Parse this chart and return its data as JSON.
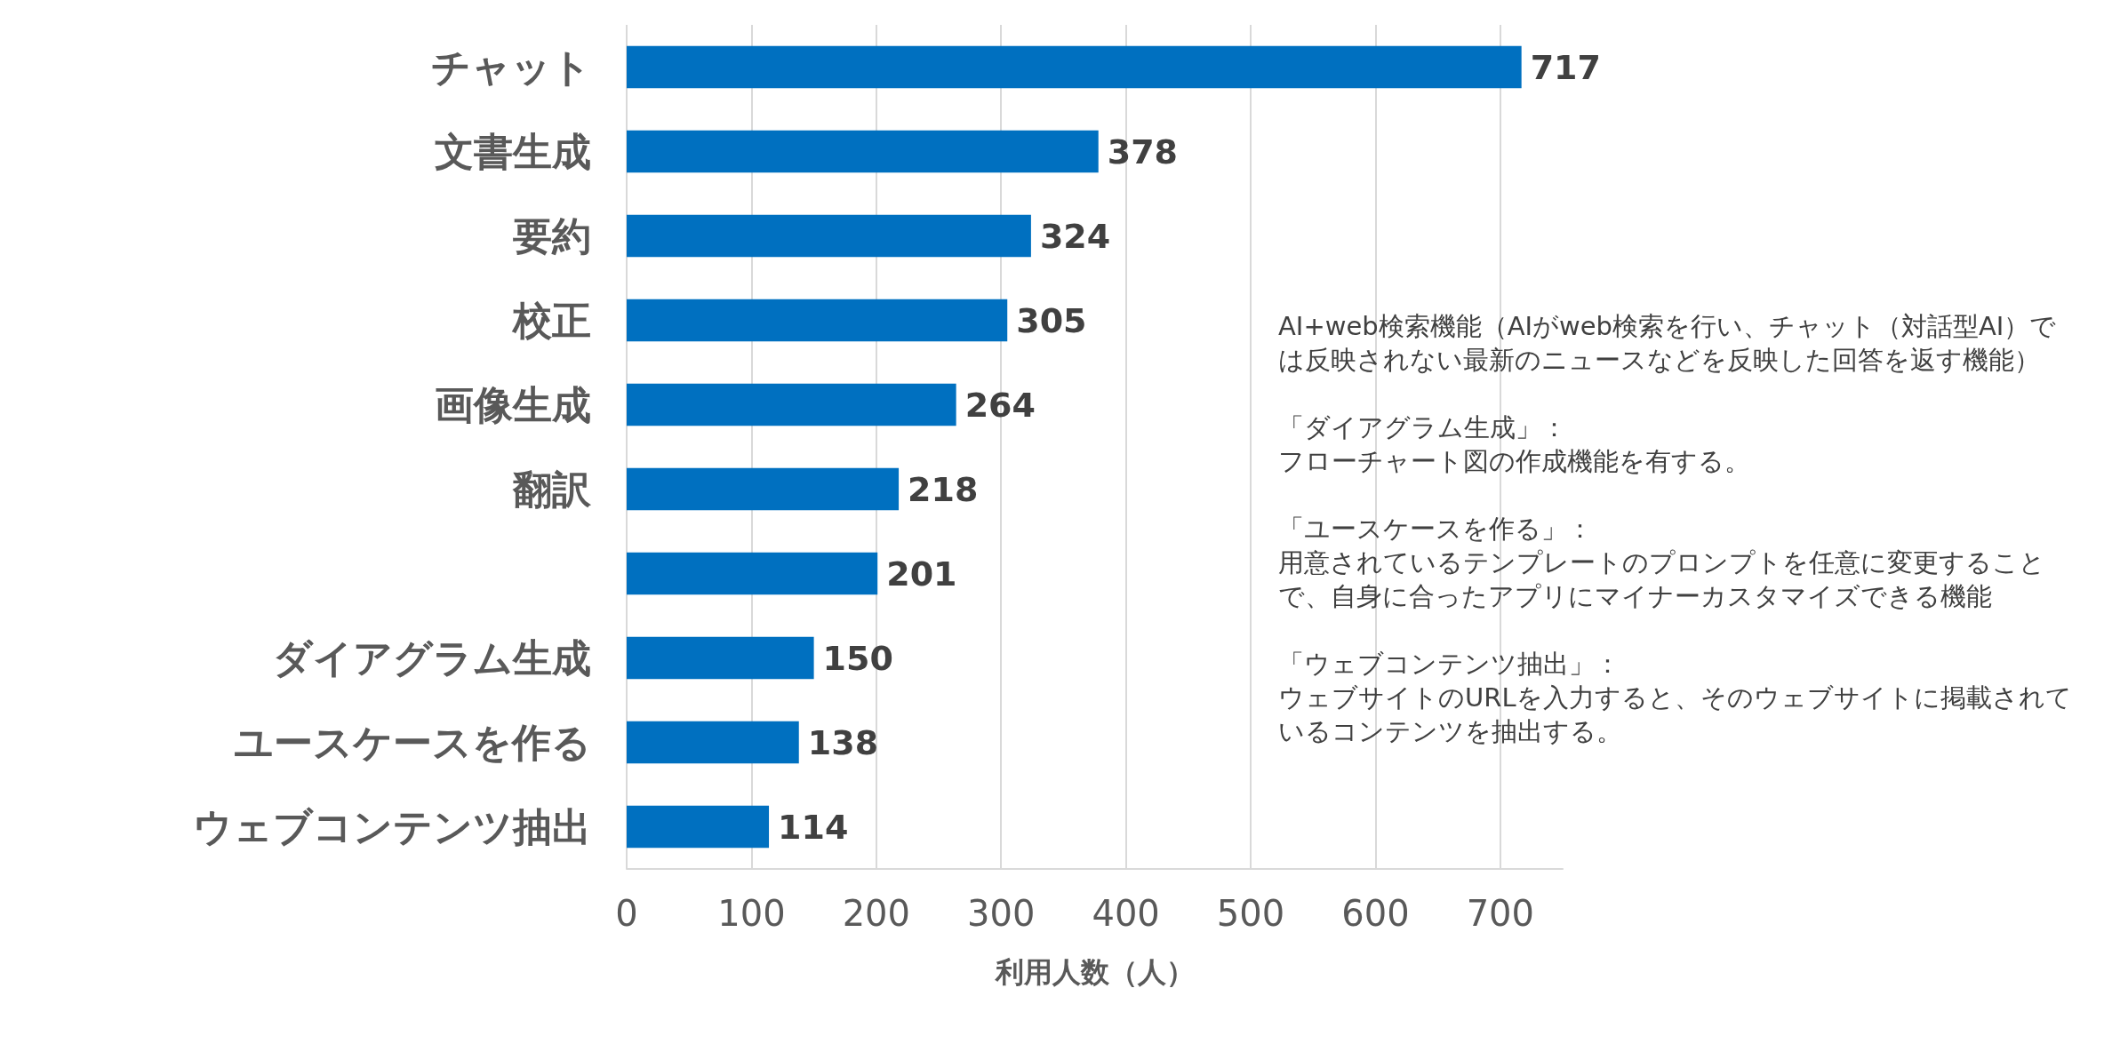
{
  "chart_data": {
    "type": "bar",
    "orientation": "horizontal",
    "xlabel": "利用人数（人）",
    "categories": [
      "チャット",
      "文書生成",
      "要約",
      "校正",
      "画像生成",
      "翻訳",
      null,
      "ダイアグラム生成",
      "ユースケースを作る",
      "ウェブコンテンツ抽出"
    ],
    "values": [
      717,
      378,
      324,
      305,
      264,
      218,
      201,
      150,
      138,
      114
    ],
    "color": "#0070c0",
    "data_labels": true,
    "xlim": [
      0,
      750
    ],
    "xticks": [
      0,
      100,
      200,
      300,
      400,
      500,
      600,
      700
    ],
    "grid": "x",
    "annotations": [
      "AI+web検索機能（AIがweb検索を行い、チャット（対話型AI）では反映されない最新のニュースなどを反映した回答を返す機能）",
      "「ダイアグラム生成」：",
      "フローチャート図の作成機能を有する。",
      "「ユースケースを作る」：",
      "用意されているテンプレートのプロンプトを任意に変更することで、自身に合ったアプリにマイナーカスタマイズできる機能",
      "「ウェブコンテンツ抽出」：",
      "ウェブサイトのURLを入力すると、そのウェブサイトに掲載されているコンテンツを抽出する。"
    ]
  }
}
